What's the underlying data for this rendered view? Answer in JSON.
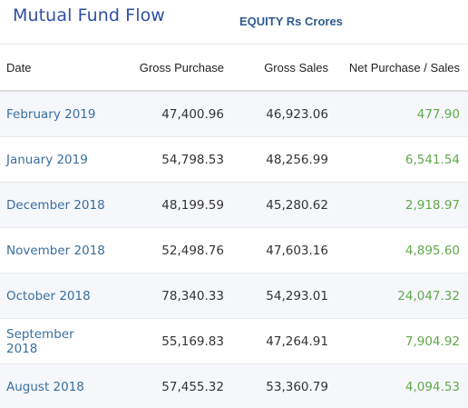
{
  "title": "Mutual Fund Flow",
  "subtitle": "EQUITY Rs Crores",
  "colors": {
    "title": "#2f4fa3",
    "date_text": "#3a6e9e",
    "net_positive": "#62a84c",
    "row_alt": "#f5f7fb"
  },
  "columns": [
    "Date",
    "Gross Purchase",
    "Gross Sales",
    "Net Purchase / Sales"
  ],
  "rows": [
    {
      "date": "February 2019",
      "gross_purchase": "47,400.96",
      "gross_sales": "46,923.06",
      "net": "477.90"
    },
    {
      "date": "January 2019",
      "gross_purchase": "54,798.53",
      "gross_sales": "48,256.99",
      "net": "6,541.54"
    },
    {
      "date": "December 2018",
      "gross_purchase": "48,199.59",
      "gross_sales": "45,280.62",
      "net": "2,918.97"
    },
    {
      "date": "November 2018",
      "gross_purchase": "52,498.76",
      "gross_sales": "47,603.16",
      "net": "4,895.60"
    },
    {
      "date": "October 2018",
      "gross_purchase": "78,340.33",
      "gross_sales": "54,293.01",
      "net": "24,047.32"
    },
    {
      "date": "September 2018",
      "gross_purchase": "55,169.83",
      "gross_sales": "47,264.91",
      "net": "7,904.92"
    },
    {
      "date": "August 2018",
      "gross_purchase": "57,455.32",
      "gross_sales": "53,360.79",
      "net": "4,094.53"
    }
  ]
}
